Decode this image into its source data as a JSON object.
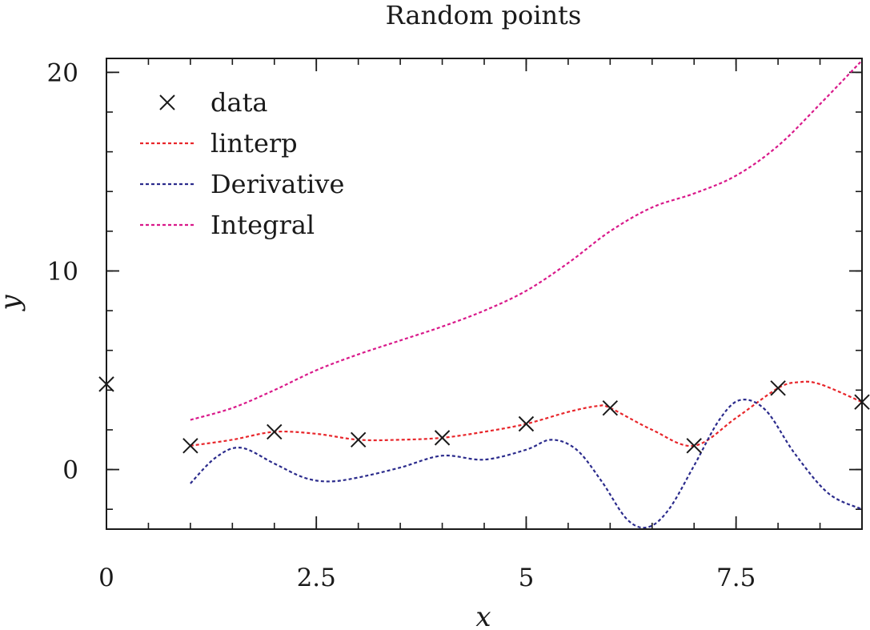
{
  "chart_data": {
    "type": "line",
    "title": "Random points",
    "xlabel": "x",
    "ylabel": "y",
    "xlim": [
      0,
      9
    ],
    "ylim": [
      -3,
      20.7
    ],
    "x_ticks": [
      0,
      2.5,
      5,
      7.5
    ],
    "x_tick_labels": [
      "0",
      "2.5",
      "5",
      "7.5"
    ],
    "y_ticks": [
      0,
      10,
      20
    ],
    "y_tick_labels": [
      "0",
      "10",
      "20"
    ],
    "x_minor_step": 0.5,
    "y_minor_step": 2,
    "grid": false,
    "legend_position": "top-left",
    "series": [
      {
        "name": "data",
        "style": "markers",
        "marker": "x",
        "color": "#1a1a1a",
        "points": [
          [
            0,
            4.3
          ],
          [
            1,
            1.2
          ],
          [
            2,
            1.9
          ],
          [
            3,
            1.5
          ],
          [
            4,
            1.6
          ],
          [
            5,
            2.3
          ],
          [
            6,
            3.1
          ],
          [
            7,
            1.2
          ],
          [
            8,
            4.1
          ],
          [
            9,
            3.4
          ]
        ]
      },
      {
        "name": "linterp",
        "style": "dashed",
        "color": "#e8262b",
        "points": [
          [
            1,
            1.2
          ],
          [
            1.5,
            1.5
          ],
          [
            2,
            1.9
          ],
          [
            2.5,
            1.8
          ],
          [
            3,
            1.5
          ],
          [
            3.5,
            1.5
          ],
          [
            4,
            1.6
          ],
          [
            4.5,
            1.9
          ],
          [
            5,
            2.3
          ],
          [
            5.5,
            2.9
          ],
          [
            5.85,
            3.2
          ],
          [
            6,
            3.1
          ],
          [
            6.5,
            2.0
          ],
          [
            7,
            1.2
          ],
          [
            7.5,
            2.6
          ],
          [
            8,
            4.1
          ],
          [
            8.25,
            4.4
          ],
          [
            8.5,
            4.3
          ],
          [
            9,
            3.4
          ]
        ]
      },
      {
        "name": "Derivative",
        "style": "dashed",
        "color": "#2b2b8c",
        "points": [
          [
            1,
            -0.7
          ],
          [
            1.3,
            0.6
          ],
          [
            1.6,
            1.1
          ],
          [
            2,
            0.3
          ],
          [
            2.35,
            -0.4
          ],
          [
            2.65,
            -0.6
          ],
          [
            3,
            -0.4
          ],
          [
            3.5,
            0.1
          ],
          [
            4,
            0.7
          ],
          [
            4.5,
            0.5
          ],
          [
            5,
            1.0
          ],
          [
            5.3,
            1.5
          ],
          [
            5.6,
            1.0
          ],
          [
            5.9,
            -0.6
          ],
          [
            6.2,
            -2.5
          ],
          [
            6.45,
            -2.9
          ],
          [
            6.7,
            -2.0
          ],
          [
            7,
            0.2
          ],
          [
            7.3,
            2.5
          ],
          [
            7.55,
            3.5
          ],
          [
            7.85,
            3.0
          ],
          [
            8.2,
            0.8
          ],
          [
            8.6,
            -1.2
          ],
          [
            9,
            -2.0
          ]
        ]
      },
      {
        "name": "Integral",
        "style": "dashed",
        "color": "#d9198a",
        "points": [
          [
            1,
            2.5
          ],
          [
            1.5,
            3.1
          ],
          [
            2,
            4.0
          ],
          [
            2.5,
            5.0
          ],
          [
            3,
            5.8
          ],
          [
            3.5,
            6.5
          ],
          [
            4,
            7.2
          ],
          [
            4.5,
            8.0
          ],
          [
            5,
            9.0
          ],
          [
            5.5,
            10.4
          ],
          [
            6,
            12.0
          ],
          [
            6.5,
            13.2
          ],
          [
            7,
            13.9
          ],
          [
            7.5,
            14.8
          ],
          [
            8,
            16.3
          ],
          [
            8.5,
            18.4
          ],
          [
            9,
            20.6
          ]
        ]
      }
    ]
  }
}
